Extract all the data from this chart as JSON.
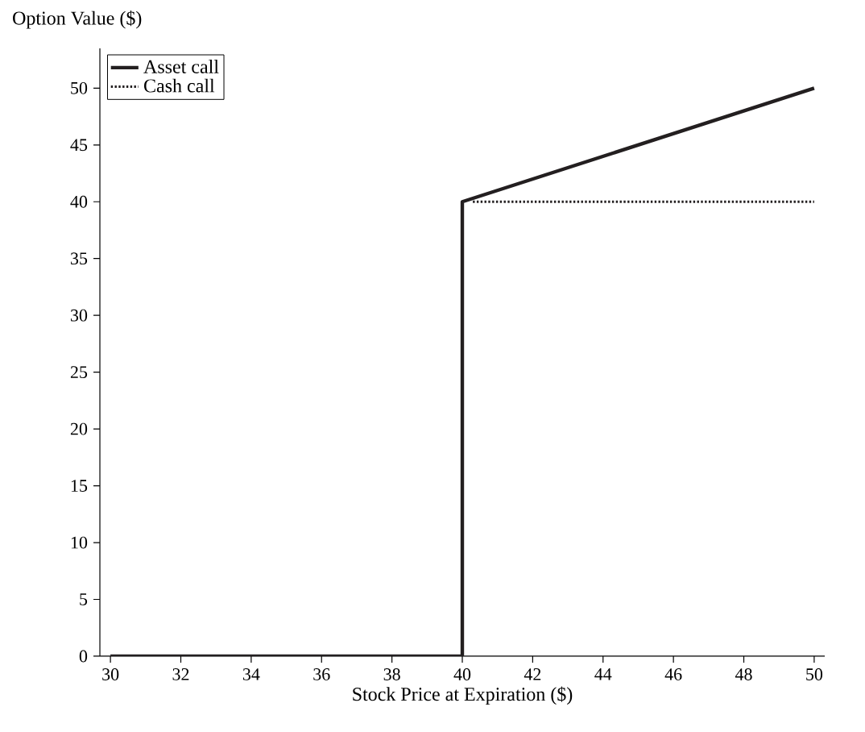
{
  "chart_data": {
    "type": "line",
    "xlabel": "Stock Price at Expiration ($)",
    "ylabel": "Option Value ($)",
    "xlim": [
      29.7,
      50.3
    ],
    "ylim": [
      0,
      53.5
    ],
    "xticks": [
      30,
      32,
      34,
      36,
      38,
      40,
      42,
      44,
      46,
      48,
      50
    ],
    "yticks": [
      0,
      5,
      10,
      15,
      20,
      25,
      30,
      35,
      40,
      45,
      50
    ],
    "grid": false,
    "legend": "top left",
    "marker": "none",
    "series": [
      {
        "name": "Asset call",
        "color": "#231f20",
        "line_style": "solid",
        "x": [
          30,
          40,
          40,
          50
        ],
        "values": [
          0,
          0,
          40,
          50
        ]
      },
      {
        "name": "Cash call",
        "color": "#231f20",
        "line_style": "dotted",
        "x": [
          40.3,
          50
        ],
        "values": [
          40,
          40
        ]
      }
    ]
  }
}
